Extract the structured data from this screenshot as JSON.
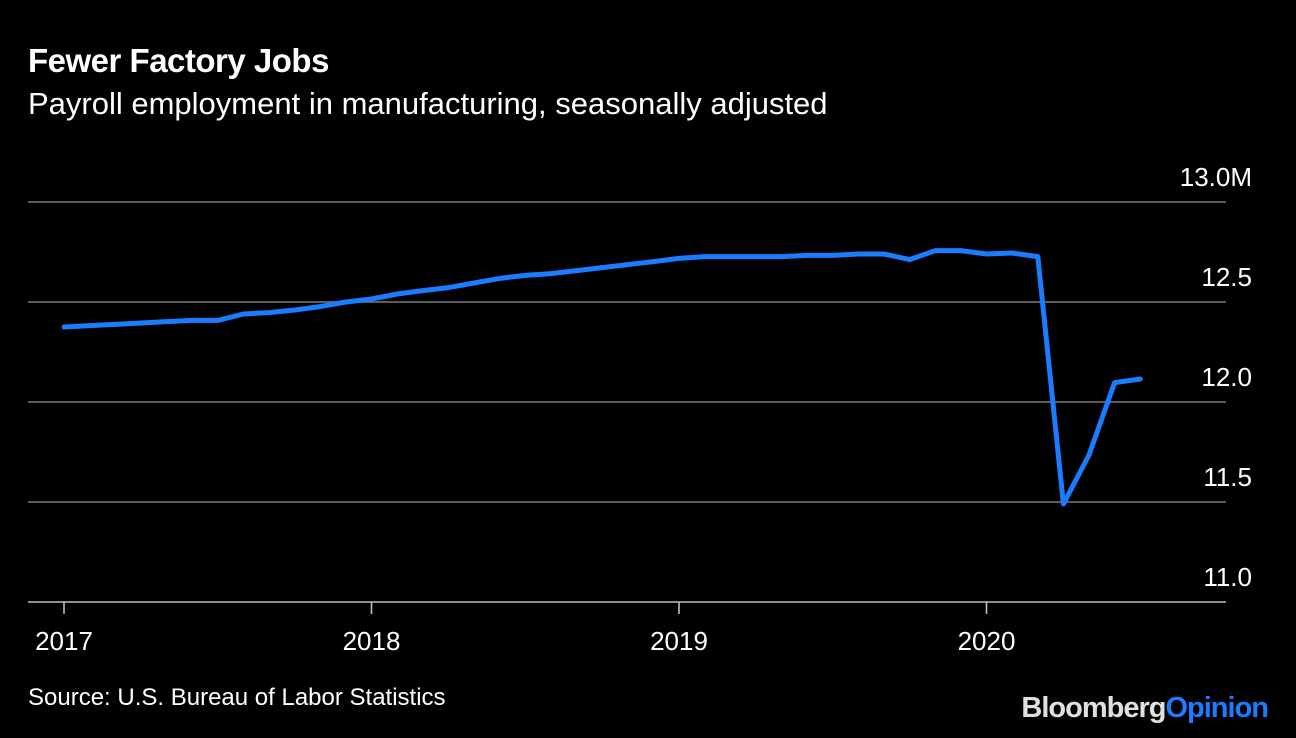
{
  "chart_data": {
    "type": "line",
    "title": "Fewer Factory Jobs",
    "subtitle": "Payroll employment in manufacturing, seasonally adjusted",
    "ylim": [
      11.0,
      13.0
    ],
    "y_ticks": [
      {
        "value": 13.0,
        "label": "13.0M"
      },
      {
        "value": 12.5,
        "label": "12.5"
      },
      {
        "value": 12.0,
        "label": "12.0"
      },
      {
        "value": 11.5,
        "label": "11.5"
      },
      {
        "value": 11.0,
        "label": "11.0"
      }
    ],
    "x_ticks": [
      "2017",
      "2018",
      "2019",
      "2020"
    ],
    "grid": true,
    "series": [
      {
        "color": "#1a7cff",
        "x": [
          "2017-01",
          "2017-02",
          "2017-03",
          "2017-04",
          "2017-05",
          "2017-06",
          "2017-07",
          "2017-08",
          "2017-09",
          "2017-10",
          "2017-11",
          "2017-12",
          "2018-01",
          "2018-02",
          "2018-03",
          "2018-04",
          "2018-05",
          "2018-06",
          "2018-07",
          "2018-08",
          "2018-09",
          "2018-10",
          "2018-11",
          "2018-12",
          "2019-01",
          "2019-02",
          "2019-03",
          "2019-04",
          "2019-05",
          "2019-06",
          "2019-07",
          "2019-08",
          "2019-09",
          "2019-10",
          "2019-11",
          "2019-12",
          "2020-01",
          "2020-02",
          "2020-03",
          "2020-04",
          "2020-05",
          "2020-06",
          "2020-07"
        ],
        "values": [
          12.375,
          12.382,
          12.388,
          12.395,
          12.402,
          12.408,
          12.408,
          12.44,
          12.447,
          12.46,
          12.477,
          12.5,
          12.515,
          12.54,
          12.557,
          12.572,
          12.595,
          12.618,
          12.633,
          12.642,
          12.657,
          12.672,
          12.687,
          12.702,
          12.718,
          12.727,
          12.727,
          12.727,
          12.727,
          12.733,
          12.733,
          12.74,
          12.74,
          12.712,
          12.757,
          12.757,
          12.74,
          12.745,
          12.727,
          11.49,
          11.735,
          12.097,
          12.115
        ]
      }
    ]
  },
  "footer": {
    "source": "Source: U.S. Bureau of Labor Statistics",
    "brand_main": "Bloomberg",
    "brand_accent": "Opinion"
  }
}
